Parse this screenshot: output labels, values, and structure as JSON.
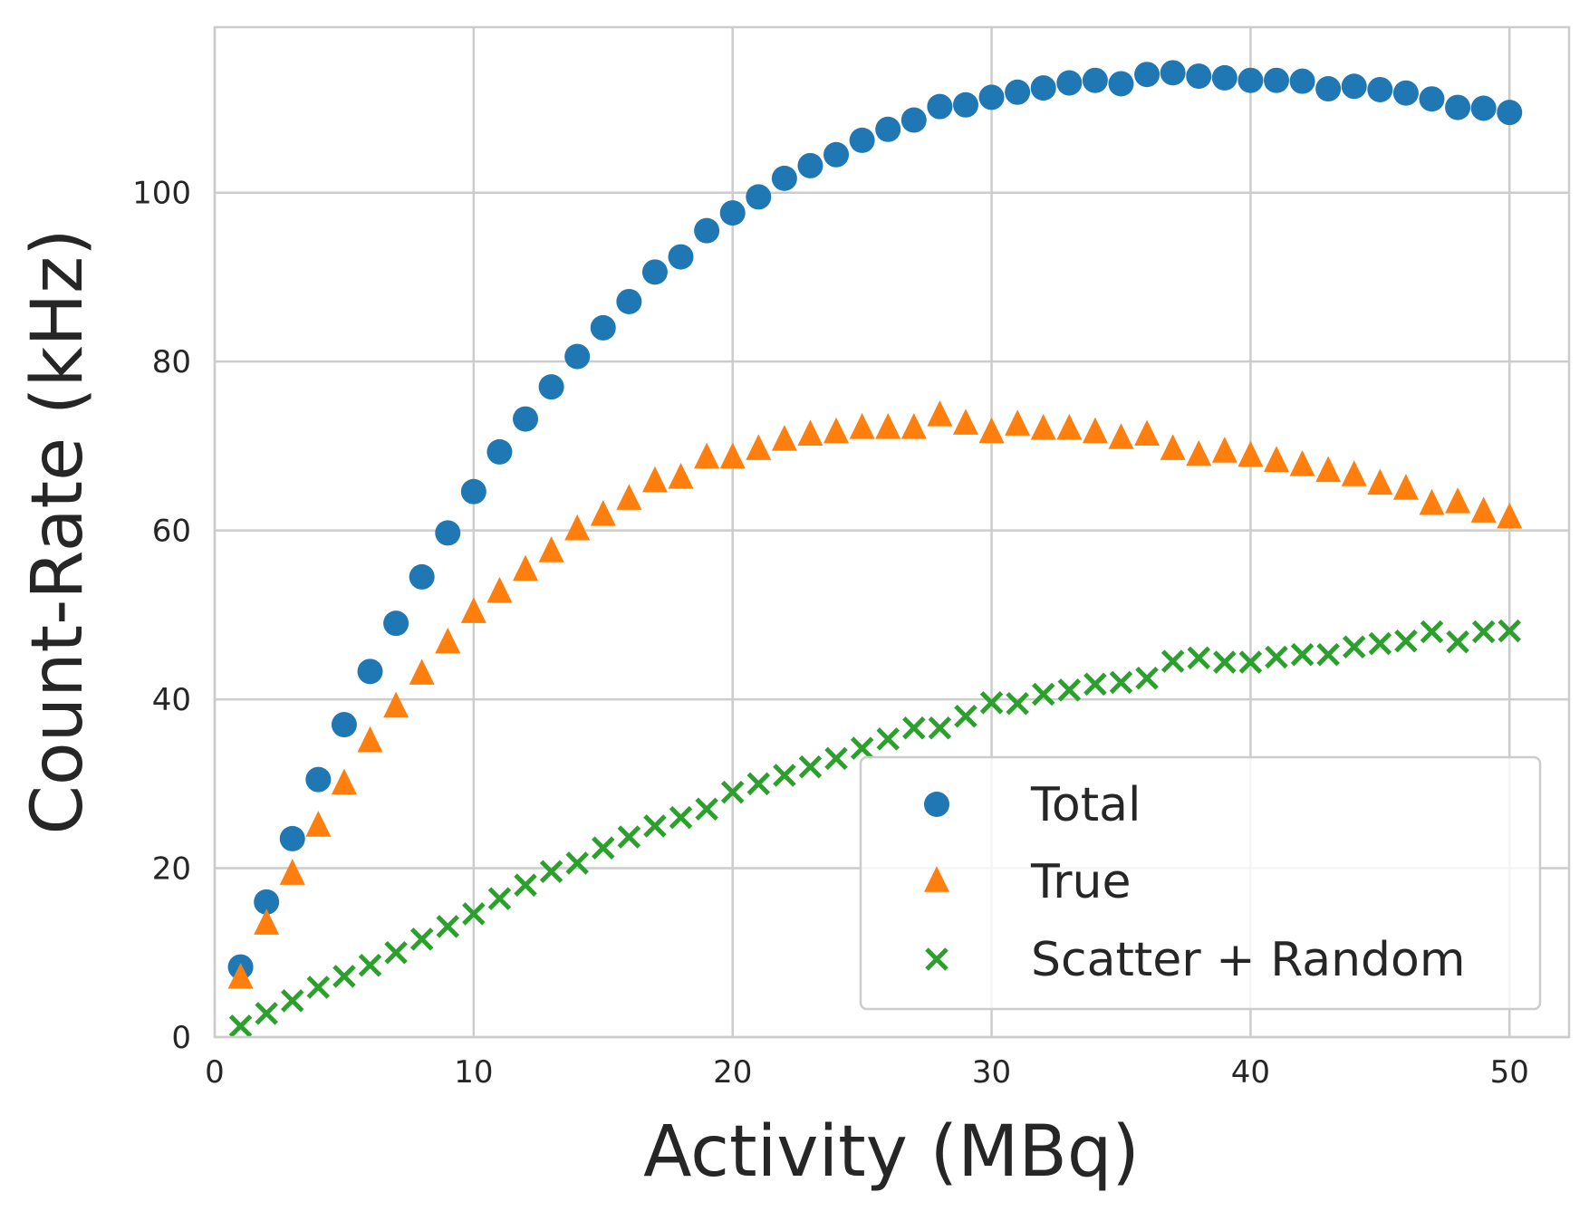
{
  "chart_data": {
    "type": "scatter",
    "xlabel": "Activity (MBq)",
    "ylabel": "Count-Rate (kHz)",
    "xlim": [
      0,
      52.3
    ],
    "ylim": [
      0,
      119.6
    ],
    "xticks": [
      "0",
      "10",
      "20",
      "30",
      "40",
      "50"
    ],
    "yticks": [
      "0",
      "20",
      "40",
      "60",
      "80",
      "100"
    ],
    "grid": true,
    "legend_position": "bottom-right",
    "x": [
      1,
      2,
      3,
      4,
      5,
      6,
      7,
      8,
      9,
      10,
      11,
      12,
      13,
      14,
      15,
      16,
      17,
      18,
      19,
      20,
      21,
      22,
      23,
      24,
      25,
      26,
      27,
      28,
      29,
      30,
      31,
      32,
      33,
      34,
      35,
      36,
      37,
      38,
      39,
      40,
      41,
      42,
      43,
      44,
      45,
      46,
      47,
      48,
      49,
      50
    ],
    "series": [
      {
        "name": "Total",
        "marker": "circle",
        "color": "#1f77b4",
        "values": [
          8.3,
          16.0,
          23.5,
          30.5,
          37.0,
          43.3,
          49.0,
          54.5,
          59.7,
          64.6,
          69.3,
          73.2,
          77.0,
          80.6,
          84.0,
          87.1,
          90.6,
          92.4,
          95.5,
          97.6,
          99.5,
          101.7,
          103.2,
          104.5,
          106.2,
          107.5,
          108.6,
          110.2,
          110.4,
          111.3,
          111.9,
          112.4,
          113.0,
          113.3,
          112.9,
          114.0,
          114.2,
          113.8,
          113.6,
          113.3,
          113.3,
          113.2,
          112.3,
          112.6,
          112.2,
          111.8,
          111.1,
          110.1,
          110.0,
          109.5
        ]
      },
      {
        "name": "True",
        "marker": "triangle",
        "color": "#ff7f0e",
        "values": [
          7.0,
          13.4,
          19.3,
          25.0,
          30.0,
          35.0,
          39.1,
          43.0,
          46.7,
          50.3,
          52.7,
          55.3,
          57.5,
          60.1,
          61.8,
          63.7,
          65.8,
          66.2,
          68.6,
          68.6,
          69.6,
          70.7,
          71.3,
          71.6,
          72.1,
          72.1,
          72.1,
          73.6,
          72.6,
          71.6,
          72.5,
          72.0,
          72.0,
          71.6,
          70.9,
          71.3,
          69.6,
          68.9,
          69.3,
          68.8,
          68.2,
          67.7,
          67.0,
          66.5,
          65.5,
          64.9,
          63.1,
          63.3,
          62.2,
          61.5
        ]
      },
      {
        "name": "Scatter + Random",
        "marker": "x",
        "color": "#2ca02c",
        "values": [
          1.3,
          2.8,
          4.3,
          5.9,
          7.2,
          8.5,
          10.0,
          11.6,
          13.1,
          14.6,
          16.4,
          18.0,
          19.6,
          20.6,
          22.4,
          23.7,
          25.0,
          26.0,
          27.0,
          29.0,
          30.0,
          31.0,
          32.0,
          33.0,
          34.2,
          35.3,
          36.6,
          36.6,
          38.0,
          39.6,
          39.5,
          40.6,
          41.1,
          41.8,
          42.0,
          42.5,
          44.5,
          44.9,
          44.4,
          44.4,
          45.0,
          45.3,
          45.3,
          46.2,
          46.6,
          46.9,
          48.0,
          46.8,
          48.0,
          48.1
        ]
      }
    ]
  }
}
